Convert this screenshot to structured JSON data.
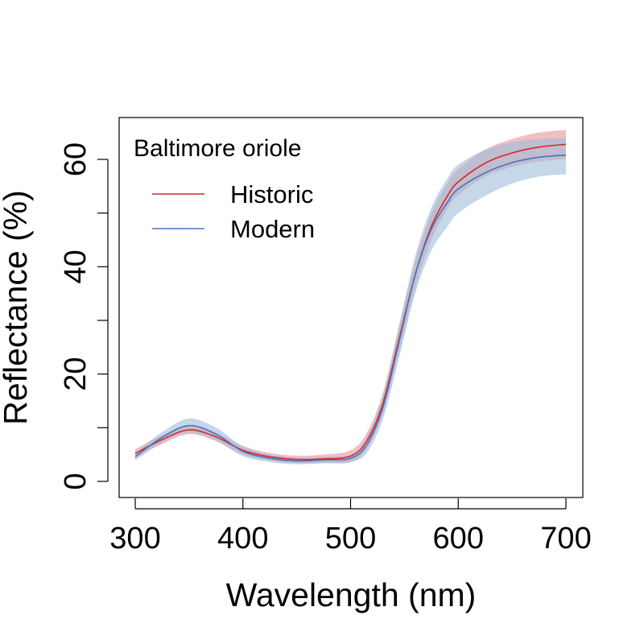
{
  "chart_data": {
    "type": "line",
    "title": "Baltimore oriole",
    "xlabel": "Wavelength (nm)",
    "ylabel": "Reflectance (%)",
    "xlim": [
      300,
      700
    ],
    "ylim": [
      0,
      65
    ],
    "xticks": [
      300,
      400,
      500,
      600,
      700
    ],
    "yticks": [
      0,
      20,
      40,
      60
    ],
    "yminor_ticks": [
      10,
      30,
      50
    ],
    "grid": false,
    "legend_position": "top-left",
    "x": [
      300,
      325,
      350,
      375,
      400,
      425,
      450,
      475,
      500,
      515,
      530,
      545,
      560,
      575,
      590,
      600,
      625,
      650,
      675,
      700
    ],
    "series": [
      {
        "name": "Historic",
        "color": "#d62728",
        "band_color": "#e8959a",
        "values": [
          5.2,
          7.8,
          9.6,
          8.3,
          5.8,
          4.6,
          4.1,
          4.2,
          4.7,
          7.5,
          14.5,
          26.5,
          38.5,
          47.5,
          53.2,
          55.8,
          59.3,
          61.2,
          62.3,
          62.8
        ],
        "upper": [
          6.0,
          8.6,
          10.4,
          9.1,
          6.6,
          5.3,
          4.8,
          5.0,
          5.8,
          9.0,
          16.5,
          29.0,
          41.0,
          50.0,
          55.6,
          58.2,
          61.8,
          63.8,
          65.0,
          65.5
        ],
        "lower": [
          4.4,
          7.0,
          8.8,
          7.5,
          5.0,
          3.9,
          3.4,
          3.4,
          3.6,
          6.0,
          12.5,
          24.0,
          36.0,
          45.0,
          50.8,
          53.4,
          56.8,
          58.6,
          59.6,
          60.1
        ]
      },
      {
        "name": "Modern",
        "color": "#4a72b8",
        "band_color": "#9fbcd8",
        "values": [
          4.6,
          8.2,
          10.4,
          8.8,
          5.6,
          4.3,
          3.8,
          4.0,
          4.3,
          6.8,
          13.8,
          26.0,
          38.5,
          47.0,
          52.0,
          54.5,
          57.5,
          59.4,
          60.4,
          60.8
        ],
        "upper": [
          5.3,
          9.2,
          11.7,
          10.0,
          6.5,
          5.0,
          4.4,
          4.6,
          5.0,
          8.3,
          16.0,
          29.0,
          42.0,
          51.0,
          56.5,
          59.0,
          61.8,
          63.2,
          63.8,
          64.0
        ],
        "lower": [
          3.9,
          7.2,
          9.1,
          7.6,
          4.7,
          3.6,
          3.2,
          3.4,
          3.6,
          5.3,
          11.6,
          23.0,
          35.0,
          43.0,
          47.5,
          50.0,
          53.2,
          55.5,
          56.8,
          57.2
        ]
      }
    ]
  }
}
